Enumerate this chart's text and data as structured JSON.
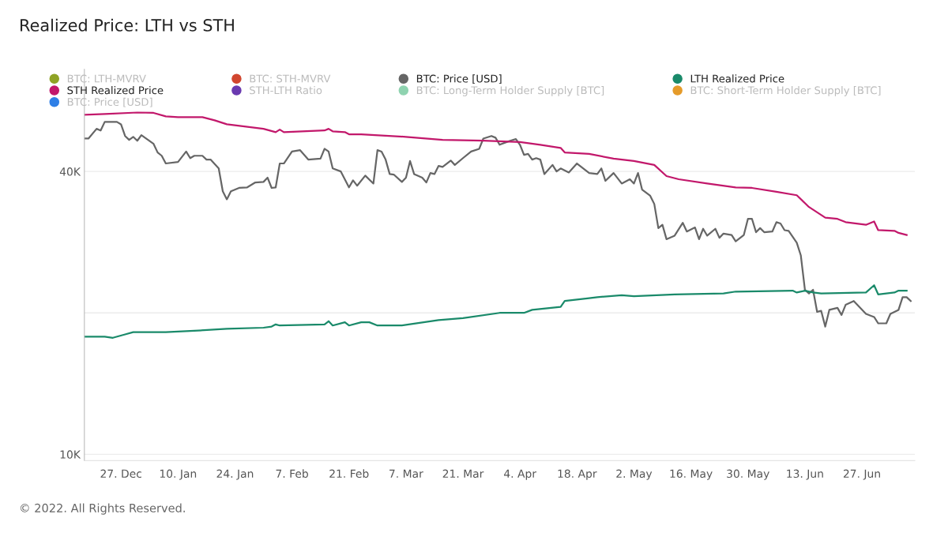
{
  "chart_data": {
    "type": "line",
    "title": "Realized Price: LTH vs STH",
    "annotations": [
      "© 2022. All Rights Reserved."
    ],
    "log": true,
    "grid": "y",
    "legend": "top left",
    "marker": "none",
    "line_style": "solid",
    "xlim": [
      "2021-12-18",
      "2022-07-10"
    ],
    "xticks": [
      {
        "value": "2021-12-27",
        "label": "27. Dec"
      },
      {
        "value": "2022-01-10",
        "label": "10. Jan"
      },
      {
        "value": "2022-01-24",
        "label": "24. Jan"
      },
      {
        "value": "2022-02-07",
        "label": "7. Feb"
      },
      {
        "value": "2022-02-21",
        "label": "21. Feb"
      },
      {
        "value": "2022-03-07",
        "label": "7. Mar"
      },
      {
        "value": "2022-03-21",
        "label": "21. Mar"
      },
      {
        "value": "2022-04-04",
        "label": "4. Apr"
      },
      {
        "value": "2022-04-18",
        "label": "18. Apr"
      },
      {
        "value": "2022-05-02",
        "label": "2. May"
      },
      {
        "value": "2022-05-16",
        "label": "16. May"
      },
      {
        "value": "2022-05-30",
        "label": "30. May"
      },
      {
        "value": "2022-06-13",
        "label": "13. Jun"
      },
      {
        "value": "2022-06-27",
        "label": "27. Jun"
      }
    ],
    "ylim": [
      9700,
      66000
    ],
    "yticks": [
      {
        "value": 10000,
        "label": "10K"
      },
      {
        "value": 20000,
        "label": null
      },
      {
        "value": 40000,
        "label": "40K"
      }
    ],
    "series": [
      {
        "name": "BTC: LTH-MVRV",
        "color": "#8fa326"
      },
      {
        "name": "BTC: STH-MVRV",
        "color": "#d1462f"
      },
      {
        "name": "BTC: Price [USD]",
        "color": "#666666",
        "x": [
          "2021-12-18",
          "2021-12-19",
          "2021-12-21",
          "2021-12-22",
          "2021-12-23",
          "2021-12-26",
          "2021-12-27",
          "2021-12-28",
          "2021-12-29",
          "2021-12-30",
          "2021-12-31",
          "2022-01-01",
          "2022-01-04",
          "2022-01-05",
          "2022-01-06",
          "2022-01-07",
          "2022-01-10",
          "2022-01-12",
          "2022-01-13",
          "2022-01-14",
          "2022-01-16",
          "2022-01-17",
          "2022-01-18",
          "2022-01-20",
          "2022-01-21",
          "2022-01-22",
          "2022-01-23",
          "2022-01-25",
          "2022-01-27",
          "2022-01-29",
          "2022-01-31",
          "2022-02-01",
          "2022-02-02",
          "2022-02-03",
          "2022-02-04",
          "2022-02-05",
          "2022-02-07",
          "2022-02-09",
          "2022-02-11",
          "2022-02-14",
          "2022-02-15",
          "2022-02-16",
          "2022-02-17",
          "2022-02-19",
          "2022-02-21",
          "2022-02-22",
          "2022-02-23",
          "2022-02-25",
          "2022-02-27",
          "2022-02-28",
          "2022-03-01",
          "2022-03-02",
          "2022-03-03",
          "2022-03-04",
          "2022-03-06",
          "2022-03-07",
          "2022-03-08",
          "2022-03-09",
          "2022-03-11",
          "2022-03-12",
          "2022-03-13",
          "2022-03-14",
          "2022-03-15",
          "2022-03-16",
          "2022-03-18",
          "2022-03-19",
          "2022-03-21",
          "2022-03-23",
          "2022-03-25",
          "2022-03-26",
          "2022-03-28",
          "2022-03-29",
          "2022-03-30",
          "2022-04-01",
          "2022-04-03",
          "2022-04-04",
          "2022-04-05",
          "2022-04-06",
          "2022-04-07",
          "2022-04-08",
          "2022-04-09",
          "2022-04-10",
          "2022-04-12",
          "2022-04-13",
          "2022-04-14",
          "2022-04-16",
          "2022-04-18",
          "2022-04-21",
          "2022-04-23",
          "2022-04-24",
          "2022-04-25",
          "2022-04-27",
          "2022-04-29",
          "2022-05-01",
          "2022-05-02",
          "2022-05-03",
          "2022-05-04",
          "2022-05-06",
          "2022-05-07",
          "2022-05-08",
          "2022-05-09",
          "2022-05-10",
          "2022-05-12",
          "2022-05-14",
          "2022-05-15",
          "2022-05-17",
          "2022-05-18",
          "2022-05-19",
          "2022-05-20",
          "2022-05-22",
          "2022-05-23",
          "2022-05-24",
          "2022-05-26",
          "2022-05-27",
          "2022-05-29",
          "2022-05-30",
          "2022-05-31",
          "2022-06-01",
          "2022-06-02",
          "2022-06-03",
          "2022-06-05",
          "2022-06-06",
          "2022-06-07",
          "2022-06-08",
          "2022-06-09",
          "2022-06-11",
          "2022-06-12",
          "2022-06-13",
          "2022-06-14",
          "2022-06-15",
          "2022-06-16",
          "2022-06-17",
          "2022-06-18",
          "2022-06-19",
          "2022-06-21",
          "2022-06-22",
          "2022-06-23",
          "2022-06-25",
          "2022-06-28",
          "2022-06-30",
          "2022-07-01",
          "2022-07-03",
          "2022-07-04",
          "2022-07-06",
          "2022-07-07",
          "2022-07-08",
          "2022-07-09"
        ],
        "values": [
          47000,
          47000,
          49300,
          48900,
          51000,
          51000,
          50400,
          47600,
          46700,
          47400,
          46500,
          47800,
          45800,
          43900,
          43200,
          41600,
          41900,
          44100,
          42700,
          43200,
          43200,
          42400,
          42400,
          40600,
          36300,
          34900,
          36300,
          36900,
          37000,
          37900,
          38000,
          38800,
          36900,
          37000,
          41600,
          41600,
          44100,
          44400,
          42400,
          42600,
          44700,
          44100,
          40600,
          40000,
          37000,
          38300,
          37300,
          39200,
          37700,
          44400,
          44100,
          42400,
          39500,
          39400,
          38000,
          38800,
          42100,
          39500,
          38800,
          37900,
          39700,
          39500,
          41100,
          40900,
          42200,
          41300,
          42700,
          44100,
          44700,
          47000,
          47600,
          47200,
          45600,
          46300,
          46900,
          45600,
          43400,
          43600,
          42400,
          42700,
          42400,
          39500,
          41300,
          40000,
          40600,
          39800,
          41600,
          39700,
          39500,
          40600,
          38200,
          39700,
          37700,
          38500,
          37700,
          39700,
          36600,
          35500,
          34100,
          30300,
          30800,
          28700,
          29200,
          31100,
          29800,
          30400,
          28700,
          30200,
          29200,
          30200,
          28900,
          29500,
          29300,
          28400,
          29300,
          31700,
          31700,
          29700,
          30300,
          29700,
          29800,
          31200,
          31000,
          30000,
          29900,
          28200,
          26500,
          22400,
          22000,
          22400,
          20100,
          20200,
          18700,
          20300,
          20500,
          19800,
          20800,
          21200,
          19900,
          19600,
          19000,
          19000,
          19900,
          20300,
          21600,
          21600,
          21200
        ]
      },
      {
        "name": "LTH Realized Price",
        "color": "#1a8a6a",
        "x": [
          "2021-12-18",
          "2021-12-23",
          "2021-12-25",
          "2021-12-28",
          "2021-12-30",
          "2022-01-07",
          "2022-01-13",
          "2022-01-22",
          "2022-01-31",
          "2022-02-02",
          "2022-02-03",
          "2022-02-04",
          "2022-02-15",
          "2022-02-16",
          "2022-02-17",
          "2022-02-20",
          "2022-02-21",
          "2022-02-24",
          "2022-02-26",
          "2022-02-28",
          "2022-03-06",
          "2022-03-15",
          "2022-03-21",
          "2022-03-30",
          "2022-04-05",
          "2022-04-07",
          "2022-04-14",
          "2022-04-15",
          "2022-04-21",
          "2022-04-23",
          "2022-04-29",
          "2022-05-02",
          "2022-05-12",
          "2022-05-24",
          "2022-05-27",
          "2022-06-10",
          "2022-06-11",
          "2022-06-13",
          "2022-06-15",
          "2022-06-17",
          "2022-06-28",
          "2022-06-30",
          "2022-07-01",
          "2022-07-05",
          "2022-07-06",
          "2022-07-08"
        ],
        "values": [
          17800,
          17800,
          17700,
          18000,
          18200,
          18200,
          18300,
          18500,
          18600,
          18700,
          18900,
          18800,
          18900,
          19200,
          18800,
          19100,
          18800,
          19100,
          19100,
          18800,
          18800,
          19300,
          19500,
          20000,
          20000,
          20300,
          20600,
          21200,
          21500,
          21600,
          21800,
          21700,
          21900,
          22000,
          22200,
          22300,
          22100,
          22300,
          22100,
          22000,
          22100,
          22900,
          21900,
          22100,
          22300,
          22300
        ]
      },
      {
        "name": "STH Realized Price",
        "color": "#c2186b",
        "x": [
          "2021-12-18",
          "2021-12-23",
          "2021-12-31",
          "2022-01-04",
          "2022-01-07",
          "2022-01-10",
          "2022-01-16",
          "2022-01-19",
          "2022-01-22",
          "2022-01-31",
          "2022-02-03",
          "2022-02-04",
          "2022-02-05",
          "2022-02-15",
          "2022-02-16",
          "2022-02-17",
          "2022-02-20",
          "2022-02-21",
          "2022-02-24",
          "2022-03-07",
          "2022-03-16",
          "2022-03-26",
          "2022-04-04",
          "2022-04-09",
          "2022-04-14",
          "2022-04-15",
          "2022-04-21",
          "2022-04-27",
          "2022-05-02",
          "2022-05-07",
          "2022-05-10",
          "2022-05-13",
          "2022-05-20",
          "2022-05-27",
          "2022-05-31",
          "2022-06-06",
          "2022-06-11",
          "2022-06-14",
          "2022-06-18",
          "2022-06-21",
          "2022-06-23",
          "2022-06-28",
          "2022-06-30",
          "2022-07-01",
          "2022-07-05",
          "2022-07-06",
          "2022-07-08"
        ],
        "values": [
          52800,
          53000,
          53400,
          53300,
          52400,
          52200,
          52200,
          51400,
          50400,
          49300,
          48500,
          49100,
          48500,
          48900,
          49300,
          48700,
          48500,
          48000,
          48000,
          47400,
          46700,
          46500,
          46200,
          45600,
          44900,
          43900,
          43600,
          42600,
          42100,
          41300,
          39100,
          38500,
          37700,
          37000,
          36900,
          36200,
          35600,
          33600,
          31900,
          31700,
          31200,
          30800,
          31300,
          30000,
          29900,
          29600,
          29300
        ]
      },
      {
        "name": "STH-LTH Ratio",
        "color": "#6a3ab0"
      },
      {
        "name": "BTC: Long-Term Holder Supply [BTC]",
        "color": "#8fd3b0"
      },
      {
        "name": "BTC: Short-Term Holder Supply [BTC]",
        "color": "#e59b2a"
      },
      {
        "name": "BTC: Price [USD]",
        "color": "#2f7fe6"
      }
    ]
  }
}
